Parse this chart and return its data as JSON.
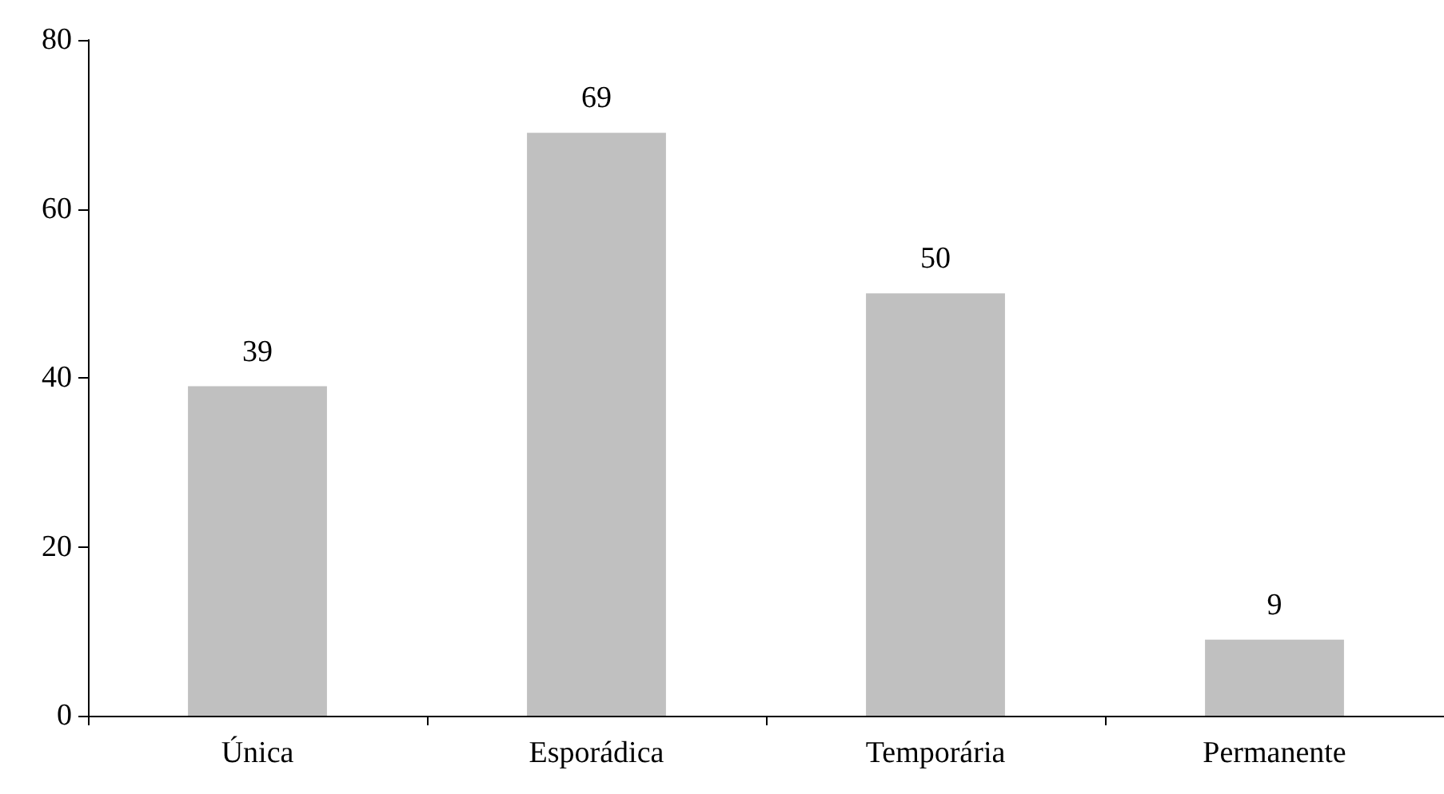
{
  "chart_data": {
    "type": "bar",
    "categories": [
      "Única",
      "Esporádica",
      "Temporária",
      "Permanente"
    ],
    "values": [
      39,
      69,
      50,
      9
    ],
    "color": "#c0c0c0",
    "ylim": [
      0,
      80
    ],
    "yticks": [
      0,
      20,
      40,
      60,
      80
    ],
    "grid": false,
    "data_labels": true
  }
}
